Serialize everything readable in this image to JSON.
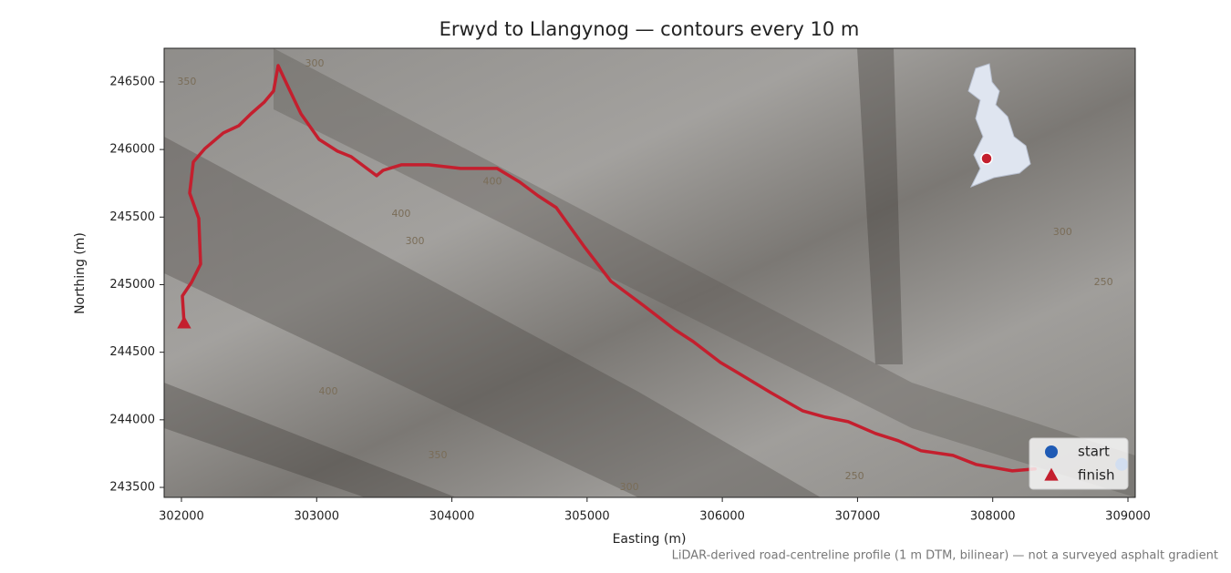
{
  "chart_data": {
    "type": "line",
    "title": "Erwyd to Llangynog — contours every 10 m",
    "x_label": "Easting (m)",
    "y_label": "Northing (m)",
    "footnote": "LiDAR-derived road-centreline profile (1 m DTM, bilinear) — not a surveyed asphalt gradient",
    "xlim": [
      301872,
      309054
    ],
    "ylim": [
      243426,
      246749
    ],
    "xticks": [
      302000,
      303000,
      304000,
      305000,
      306000,
      307000,
      308000,
      309000
    ],
    "yticks": [
      243500,
      244000,
      244500,
      245000,
      245500,
      246000,
      246500
    ],
    "series": [
      {
        "name": "route",
        "color": "#c41f2e",
        "x": [
          308313,
          308145,
          307875,
          307706,
          307470,
          307302,
          307133,
          306931,
          306762,
          306593,
          306357,
          306121,
          305986,
          305784,
          305649,
          305413,
          305177,
          304975,
          304772,
          304637,
          304502,
          304334,
          304064,
          303828,
          303626,
          303491,
          303443,
          303255,
          303153,
          303018,
          302884,
          302803,
          302715,
          302681,
          302614,
          302513,
          302425,
          302310,
          302175,
          302088,
          302061,
          302128,
          302142,
          302074,
          302007,
          302020
        ],
        "values": [
          243636,
          243622,
          243670,
          243737,
          243771,
          243845,
          243899,
          243986,
          244020,
          244067,
          244202,
          244344,
          244424,
          244579,
          244667,
          244849,
          245024,
          245287,
          245570,
          245658,
          245759,
          245860,
          245860,
          245887,
          245887,
          245846,
          245806,
          245947,
          245988,
          246075,
          246264,
          246433,
          246621,
          246433,
          246352,
          246264,
          246177,
          246123,
          246008,
          245907,
          245678,
          245489,
          245152,
          245017,
          244916,
          244714
        ]
      }
    ],
    "markers": [
      {
        "name": "start",
        "color": "#1f5bb5",
        "shape": "circle",
        "x": 308954,
        "y": 243670
      },
      {
        "name": "finish",
        "color": "#c41f2e",
        "shape": "triangle",
        "x": 302020,
        "y": 244714
      }
    ],
    "contour_labels": [
      {
        "text": "350",
        "x": 302040,
        "y": 246500
      },
      {
        "text": "300",
        "x": 302985,
        "y": 246635
      },
      {
        "text": "400",
        "x": 304300,
        "y": 245760
      },
      {
        "text": "400",
        "x": 303625,
        "y": 245523
      },
      {
        "text": "300",
        "x": 303727,
        "y": 245321
      },
      {
        "text": "400",
        "x": 303086,
        "y": 244209
      },
      {
        "text": "350",
        "x": 303895,
        "y": 243737
      },
      {
        "text": "300",
        "x": 305312,
        "y": 243500
      },
      {
        "text": "250",
        "x": 306978,
        "y": 243582
      },
      {
        "text": "300",
        "x": 308516,
        "y": 245388
      },
      {
        "text": "250",
        "x": 308819,
        "y": 245017
      }
    ],
    "legend": "lower right"
  }
}
